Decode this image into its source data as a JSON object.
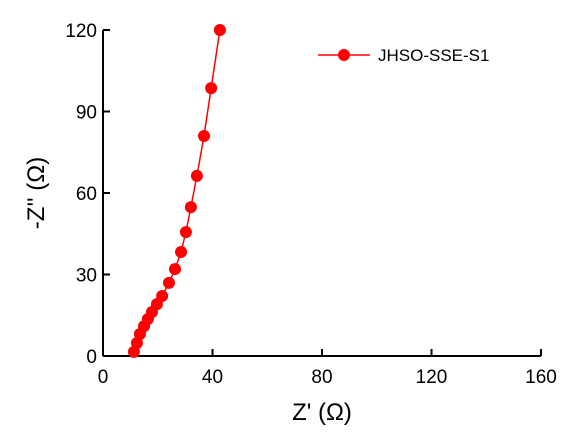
{
  "chart_data": {
    "type": "scatter",
    "x_label": "Z' (Ω)",
    "y_label": "-Z'' (Ω)",
    "xlim": [
      0,
      160
    ],
    "ylim": [
      0,
      120
    ],
    "xticks": [
      0,
      40,
      80,
      120,
      160
    ],
    "yticks": [
      0,
      30,
      60,
      90,
      120
    ],
    "legend": "upper right",
    "series": [
      {
        "name": "JHSO-SSE-S1",
        "color": "#ff0000",
        "x": [
          11.3,
          12.4,
          13.5,
          15.0,
          16.4,
          17.9,
          19.7,
          21.6,
          24.1,
          26.3,
          28.5,
          30.3,
          32.1,
          34.3,
          36.9,
          39.5,
          42.7
        ],
        "values": [
          1.5,
          4.8,
          8.1,
          11.0,
          13.6,
          16.2,
          19.1,
          22.1,
          26.9,
          32.0,
          38.3,
          45.6,
          54.8,
          66.3,
          81.0,
          98.6,
          120
        ]
      }
    ]
  }
}
